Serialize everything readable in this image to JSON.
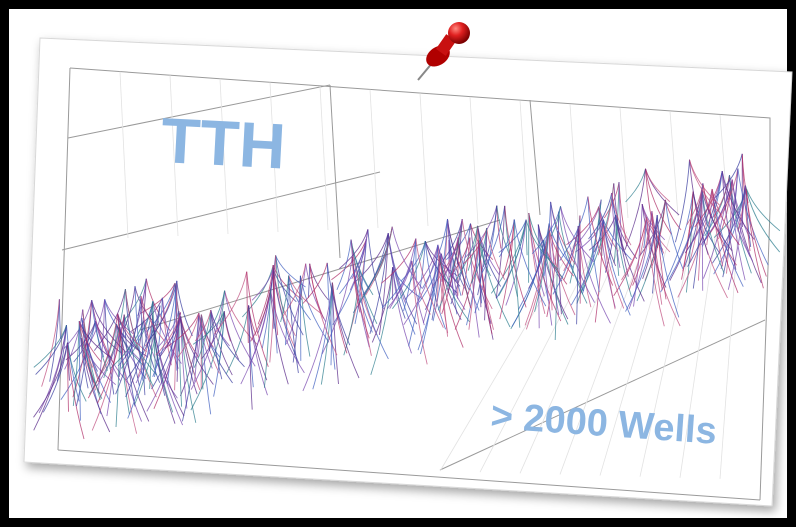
{
  "title": "TTH",
  "caption": "> 2000 Wells"
}
